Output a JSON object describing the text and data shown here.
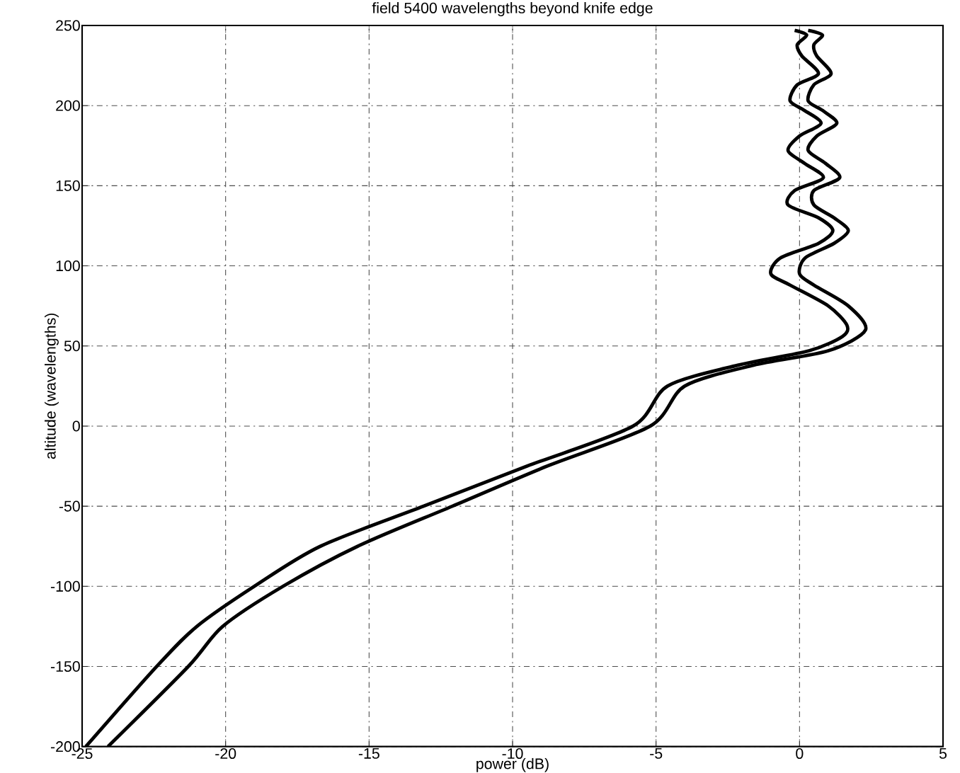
{
  "chart_data": {
    "type": "line",
    "title": "field 5400 wavelengths beyond knife edge",
    "xlabel": "power (dB)",
    "ylabel": "altitude (wavelengths)",
    "xlim": [
      -25,
      5
    ],
    "ylim": [
      -200,
      250
    ],
    "xticks": [
      -25,
      -20,
      -15,
      -10,
      -5,
      0,
      5
    ],
    "yticks": [
      -200,
      -150,
      -100,
      -50,
      0,
      50,
      100,
      150,
      200,
      250
    ],
    "grid": true,
    "line_style": "solid",
    "series": [
      {
        "color": "#000000",
        "x": [
          -24.87,
          -22.4,
          -21.0,
          -19.0,
          -16.7,
          -13.1,
          -9.5,
          -5.8,
          -4.6,
          -2.15,
          0.33,
          1.5,
          1.65,
          1.0,
          -0.33,
          -1.0,
          -0.66,
          0.66,
          1.16,
          0.66,
          -0.4,
          -0.17,
          0.83,
          0.17,
          -0.4,
          0,
          0.75,
          0.17,
          -0.33,
          -0.08,
          0.66,
          0.08,
          -0.08,
          0.25,
          -0.17
        ],
        "values": [
          -200,
          -150,
          -125,
          -100,
          -75,
          -50,
          -25,
          0,
          25,
          38,
          47,
          56,
          63,
          75,
          88,
          95,
          105,
          114,
          122,
          130,
          138,
          147,
          155,
          164,
          172,
          181,
          189,
          197,
          203,
          213,
          220,
          231,
          238,
          244,
          247
        ]
      },
      {
        "color": "#000000",
        "x": [
          -24.1,
          -21.3,
          -20.1,
          -18.0,
          -15.4,
          -12.1,
          -8.8,
          -5.2,
          -4.0,
          -1.6,
          1.0,
          2.3,
          1.7,
          0.5,
          0.0,
          0.2,
          1.2,
          1.7,
          1.2,
          0.5,
          0.5,
          1.4,
          0.9,
          0.3,
          0.6,
          1.3,
          0.8,
          0.3,
          0.5,
          1.1,
          0.6,
          0.5,
          0.8,
          0.3
        ],
        "values": [
          -200,
          -150,
          -125,
          -100,
          -75,
          -50,
          -25,
          0,
          25,
          38,
          47,
          60,
          75,
          88,
          95,
          105,
          114,
          122,
          130,
          138,
          147,
          155,
          164,
          172,
          181,
          189,
          197,
          203,
          213,
          220,
          231,
          238,
          244,
          247
        ]
      }
    ]
  }
}
